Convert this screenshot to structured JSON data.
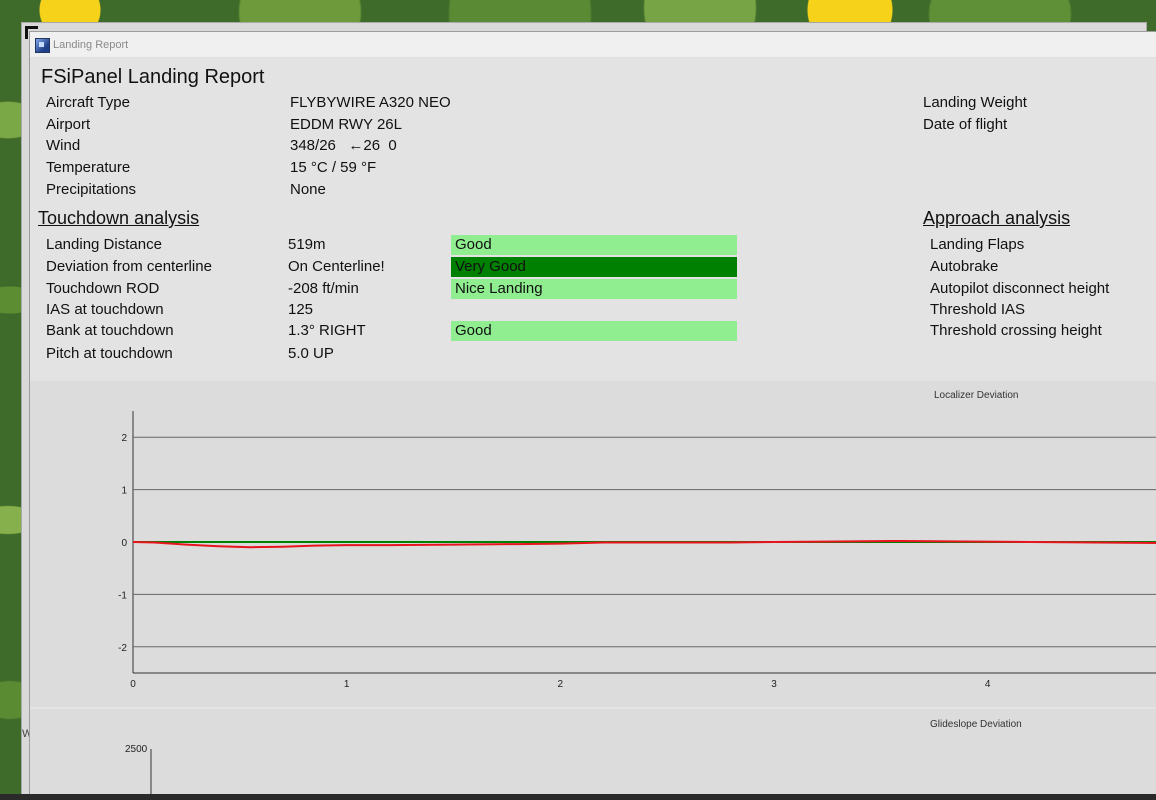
{
  "window": {
    "title": "Landing Report"
  },
  "background_window": {
    "edge_label": "W"
  },
  "report": {
    "title": "FSiPanel Landing Report",
    "info": [
      {
        "label": "Aircraft Type",
        "value": "FLYBYWIRE A320 NEO"
      },
      {
        "label": "Airport",
        "value": "EDDM RWY 26L"
      },
      {
        "label": "Wind",
        "value": "348/26   ←26  0"
      },
      {
        "label": "Temperature",
        "value": "15 °C / 59 °F"
      },
      {
        "label": "Precipitations",
        "value": "None"
      }
    ],
    "right_info": [
      {
        "label": "Landing Weight"
      },
      {
        "label": "Date of flight"
      }
    ]
  },
  "touchdown": {
    "heading": "Touchdown analysis",
    "rows": [
      {
        "label": "Landing Distance",
        "value": "519m",
        "rating": "Good",
        "rating_color": "#90ee90"
      },
      {
        "label": "Deviation from centerline",
        "value": "On Centerline!",
        "rating": "Very Good",
        "rating_color": "#008000"
      },
      {
        "label": "Touchdown ROD",
        "value": "-208 ft/min",
        "rating": "Nice Landing",
        "rating_color": "#90ee90"
      },
      {
        "label": "IAS at touchdown",
        "value": "125",
        "rating": ""
      },
      {
        "label": "Bank at touchdown",
        "value": "1.3° RIGHT",
        "rating": "Good",
        "rating_color": "#90ee90"
      },
      {
        "label": "Pitch at touchdown",
        "value": "5.0 UP",
        "rating": ""
      }
    ]
  },
  "approach": {
    "heading": "Approach analysis",
    "rows": [
      {
        "label": "Landing Flaps"
      },
      {
        "label": "Autobrake"
      },
      {
        "label": "Autopilot disconnect height"
      },
      {
        "label": "Threshold IAS"
      },
      {
        "label": "Threshold crossing height"
      }
    ]
  },
  "chart_data": [
    {
      "type": "line",
      "title": "Localizer Deviation",
      "xlim": [
        0,
        5.2
      ],
      "ylim": [
        -2.5,
        2.5
      ],
      "x_ticks": [
        0,
        1,
        2,
        3,
        4
      ],
      "y_ticks": [
        2,
        1,
        0,
        -1,
        -2
      ],
      "grid": true,
      "series": [
        {
          "color": "#008000",
          "x": [
            0,
            5.2
          ],
          "y": [
            0,
            0
          ]
        },
        {
          "color": "#e8141e",
          "x": [
            0,
            0.1,
            0.25,
            0.4,
            0.55,
            0.7,
            0.85,
            1.0,
            1.2,
            1.5,
            1.8,
            2.0,
            2.2,
            2.5,
            2.8,
            3.0,
            3.3,
            3.6,
            3.9,
            4.2,
            4.5,
            4.8,
            5.2
          ],
          "y": [
            0,
            -0.01,
            -0.05,
            -0.08,
            -0.1,
            -0.09,
            -0.07,
            -0.06,
            -0.06,
            -0.05,
            -0.04,
            -0.03,
            -0.01,
            -0.01,
            -0.01,
            0,
            0.01,
            0.02,
            0.01,
            0.0,
            -0.01,
            -0.02,
            -0.03
          ]
        }
      ]
    },
    {
      "type": "line",
      "title": "Glideslope Deviation",
      "y_ticks": [
        2500
      ],
      "series": []
    }
  ]
}
